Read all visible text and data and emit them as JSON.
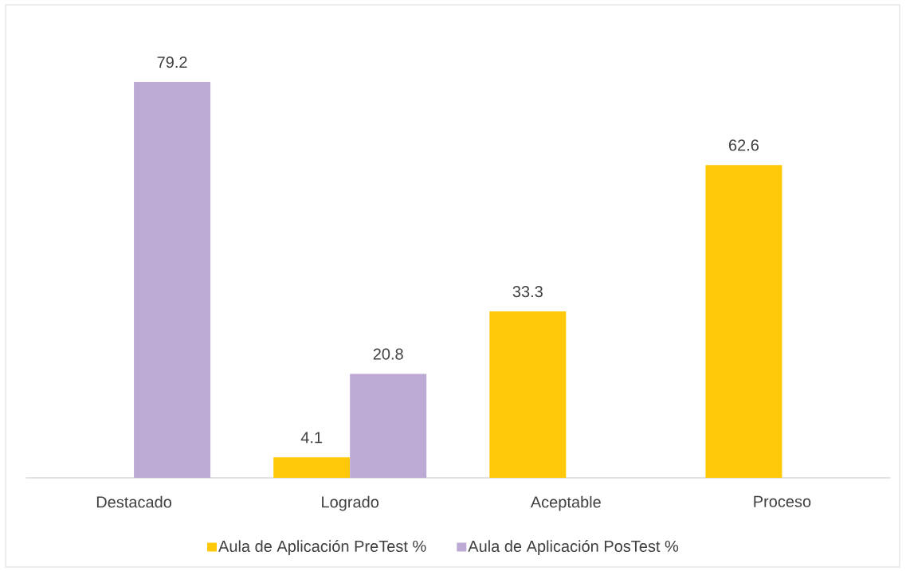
{
  "chart_data": {
    "type": "bar",
    "categories": [
      "Destacado",
      "Logrado",
      "Aceptable",
      "Proceso"
    ],
    "series": [
      {
        "name": "Aula de Aplicación PreTest %",
        "color": "#ffc90a",
        "values": [
          null,
          4.1,
          33.3,
          62.6
        ]
      },
      {
        "name": "Aula de Aplicación PosTest %",
        "color": "#bca9d4",
        "values": [
          79.2,
          20.8,
          null,
          null
        ]
      }
    ],
    "data_labels": true,
    "legend": "bottom"
  }
}
